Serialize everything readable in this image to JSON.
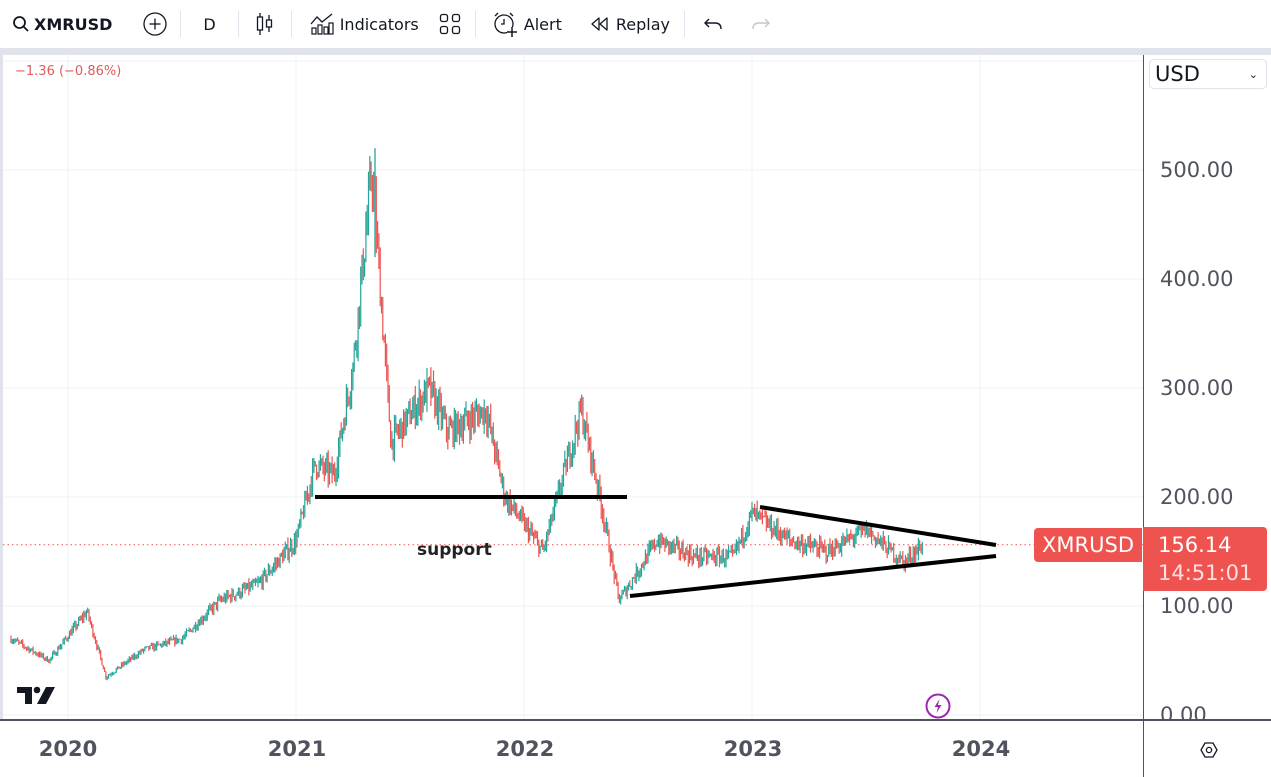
{
  "toolbar": {
    "symbol": "XMRUSD",
    "interval": "D",
    "indicators_label": "Indicators",
    "alert_label": "Alert",
    "replay_label": "Replay",
    "icons": [
      "search-icon",
      "add-symbol-icon",
      "candles-icon",
      "indicators-icon",
      "layouts-icon",
      "alert-icon",
      "replay-icon",
      "undo-icon",
      "redo-icon"
    ]
  },
  "legend": {
    "change": "−1.36 (−0.86%)",
    "change_color": "#e05a5a"
  },
  "price_axis": {
    "currency": "USD",
    "ticks": [
      "500.00",
      "400.00",
      "300.00",
      "200.00",
      "100.00",
      "0.00"
    ]
  },
  "last_price": {
    "symbol": "XMRUSD",
    "price": "156.14",
    "countdown": "14:51:01",
    "color": "#ef5350"
  },
  "time_axis": {
    "ticks": [
      "2020",
      "2021",
      "2022",
      "2023",
      "2024"
    ]
  },
  "annotations": {
    "support_label": "support"
  },
  "colors": {
    "up": "#26a69a",
    "down": "#ef5350",
    "grid": "#eef0f3",
    "drawing": "#000000"
  },
  "chart_data": {
    "type": "line",
    "title": "XMRUSD Daily",
    "xlabel": "",
    "ylabel": "USD",
    "ylim": [
      0,
      520
    ],
    "grid": true,
    "x_ticks": [
      "2020",
      "2021",
      "2022",
      "2023",
      "2024"
    ],
    "y_ticks": [
      0,
      100,
      200,
      300,
      400,
      500
    ],
    "series": [
      {
        "name": "XMRUSD",
        "x": [
          "2019-10",
          "2019-12",
          "2020-02",
          "2020-03",
          "2020-05",
          "2020-07",
          "2020-09",
          "2020-11",
          "2021-01",
          "2021-02",
          "2021-03",
          "2021-04",
          "2021-05",
          "2021-06",
          "2021-08",
          "2021-09",
          "2021-11",
          "2021-12",
          "2022-02",
          "2022-04",
          "2022-05",
          "2022-06",
          "2022-08",
          "2022-10",
          "2022-12",
          "2023-01",
          "2023-03",
          "2023-05",
          "2023-07",
          "2023-09",
          "2023-10"
        ],
        "values": [
          70,
          50,
          95,
          35,
          60,
          70,
          105,
          120,
          160,
          230,
          220,
          320,
          500,
          250,
          300,
          260,
          280,
          200,
          150,
          280,
          200,
          105,
          160,
          145,
          145,
          185,
          160,
          150,
          170,
          140,
          156
        ]
      }
    ],
    "last_value": 156.14,
    "drawings": [
      {
        "type": "horizontal_line",
        "label": "support",
        "y": 200,
        "x_start": "2021-02",
        "x_end": "2022-06"
      },
      {
        "type": "trendline",
        "name": "triangle-upper",
        "from": {
          "x": "2023-01",
          "y": 190
        },
        "to": {
          "x": "2024-01",
          "y": 155
        }
      },
      {
        "type": "trendline",
        "name": "triangle-lower",
        "from": {
          "x": "2022-06",
          "y": 110
        },
        "to": {
          "x": "2024-01",
          "y": 146
        }
      }
    ]
  }
}
